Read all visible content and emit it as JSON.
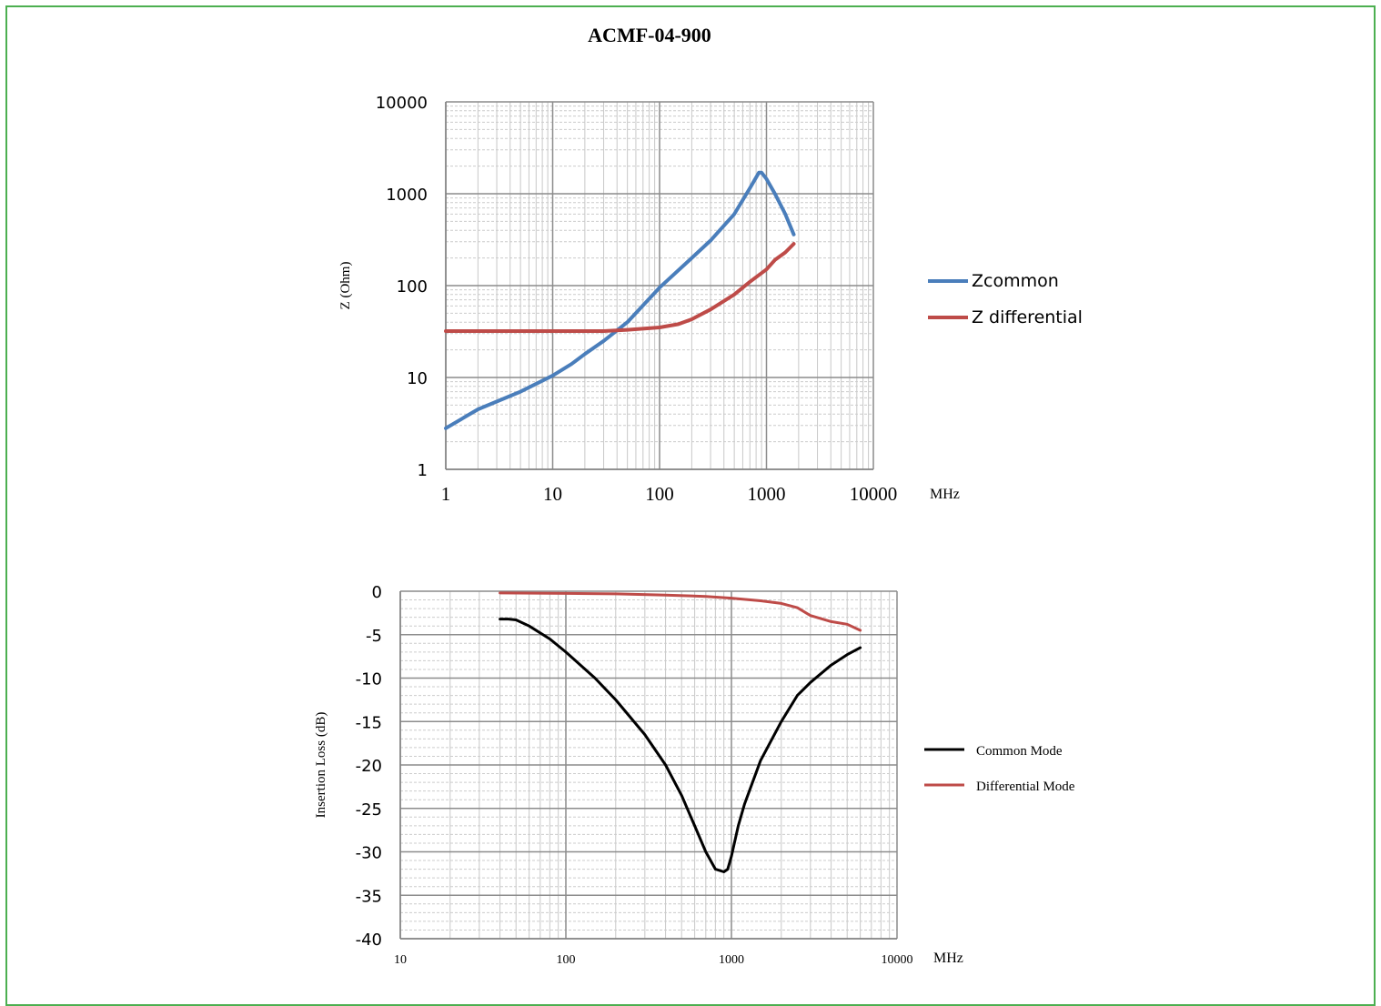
{
  "page": {
    "title": "ACMF-04-900",
    "border_color": "#4caf50"
  },
  "chart_data": [
    {
      "type": "line",
      "title": "",
      "xlabel": "MHz",
      "ylabel": "Z (Ohm)",
      "x_scale": "log",
      "y_scale": "log",
      "xlim": [
        1,
        10000
      ],
      "ylim": [
        1,
        10000
      ],
      "x_ticks": [
        "1",
        "10",
        "100",
        "1000",
        "10000"
      ],
      "y_ticks": [
        "1",
        "10",
        "100",
        "1000",
        "10000"
      ],
      "grid": true,
      "legend_position": "right",
      "series": [
        {
          "name": "Zcommon",
          "color": "#4a7ebb",
          "x": [
            1,
            2,
            5,
            10,
            15,
            20,
            30,
            50,
            100,
            200,
            300,
            500,
            700,
            850,
            900,
            1000,
            1200,
            1500,
            1800
          ],
          "y": [
            2.8,
            4.5,
            7.0,
            10.5,
            14,
            18,
            25,
            40,
            95,
            200,
            310,
            600,
            1150,
            1700,
            1700,
            1450,
            1000,
            600,
            360
          ]
        },
        {
          "name": "Z differential",
          "color": "#be4b48",
          "x": [
            1,
            10,
            30,
            50,
            100,
            150,
            200,
            300,
            500,
            700,
            1000,
            1200,
            1500,
            1800
          ],
          "y": [
            32,
            32,
            32,
            33,
            35,
            38,
            43,
            55,
            80,
            110,
            150,
            190,
            230,
            285
          ]
        }
      ]
    },
    {
      "type": "line",
      "title": "",
      "xlabel": "MHz",
      "ylabel": "Insertion Loss (dB)",
      "x_scale": "log",
      "xlim": [
        10,
        10000
      ],
      "ylim": [
        -40,
        0
      ],
      "x_ticks": [
        "10",
        "100",
        "1000",
        "10000"
      ],
      "y_ticks": [
        "0",
        "-5",
        "-10",
        "-15",
        "-20",
        "-25",
        "-30",
        "-35",
        "-40"
      ],
      "grid": true,
      "legend_position": "right",
      "series": [
        {
          "name": "Common Mode",
          "color": "#000000",
          "x": [
            40,
            45,
            50,
            60,
            80,
            100,
            150,
            200,
            300,
            400,
            500,
            600,
            700,
            800,
            900,
            950,
            1000,
            1100,
            1200,
            1500,
            2000,
            2500,
            3000,
            4000,
            5000,
            6000
          ],
          "y": [
            -3.2,
            -3.2,
            -3.3,
            -4.0,
            -5.5,
            -7.0,
            -10.0,
            -12.5,
            -16.5,
            -20.0,
            -23.5,
            -27.0,
            -30.0,
            -32.0,
            -32.3,
            -32.0,
            -30.5,
            -27.0,
            -24.5,
            -19.5,
            -15.0,
            -12.0,
            -10.5,
            -8.5,
            -7.3,
            -6.5
          ]
        },
        {
          "name": "Differential Mode",
          "color": "#be4b48",
          "x": [
            40,
            100,
            200,
            400,
            700,
            1000,
            1500,
            2000,
            2500,
            3000,
            4000,
            5000,
            6000
          ],
          "y": [
            -0.2,
            -0.25,
            -0.3,
            -0.45,
            -0.6,
            -0.8,
            -1.1,
            -1.4,
            -1.9,
            -2.8,
            -3.5,
            -3.8,
            -4.5
          ]
        }
      ]
    }
  ]
}
